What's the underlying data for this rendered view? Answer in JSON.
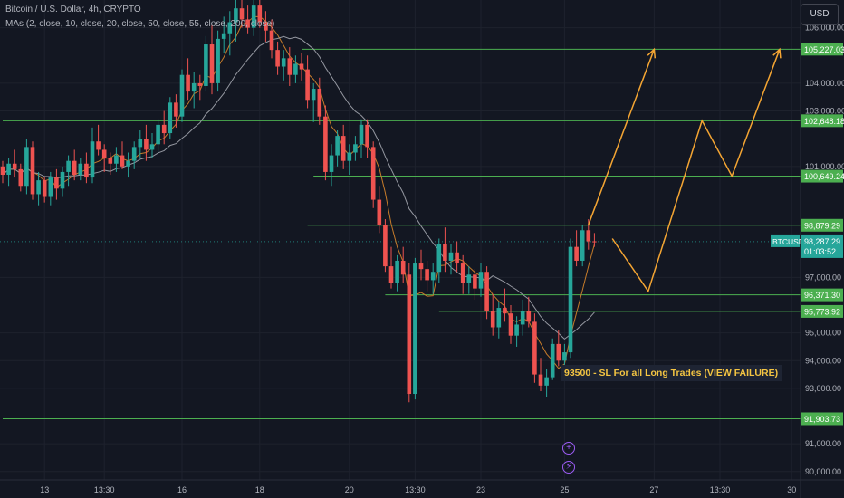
{
  "header": {
    "symbol_title": "Bitcoin / U.S. Dollar, 4h, CRYPTO",
    "indicator_label": "MAs (2, close, 10, close, 20, close, 50, close, 55, close, 200, close)",
    "currency_button": "USD"
  },
  "annotation": {
    "text": "93500 - SL For all Long Trades (VIEW FAILURE)"
  },
  "ticker": {
    "symbol": "BTCUSD",
    "price": "98,287.29",
    "countdown": "01:03:52"
  },
  "events": [
    {
      "icon": "plus-icon",
      "glyph": "+"
    },
    {
      "icon": "lightning-icon",
      "glyph": "⚡"
    }
  ],
  "colors": {
    "background": "#131722",
    "bull": "#26a69a",
    "bear": "#ef5350",
    "level_line": "#4caf50",
    "projection": "#f4a533",
    "ma_fast": "#c57b2a",
    "ma_slow": "#9598a1",
    "annotation_text": "#f4c542"
  },
  "chart_data": {
    "type": "candlestick",
    "symbol": "BTCUSD",
    "interval": "4h",
    "y_axis": {
      "ylim": [
        89700,
        107000
      ],
      "ticks": [
        90000,
        91000,
        93000,
        94000,
        95000,
        97000,
        101000,
        103000,
        104000,
        106000
      ],
      "tick_labels": [
        "90,000.00",
        "91,000.00",
        "93,000.00",
        "94,000.00",
        "95,000.00",
        "97,000.00",
        "101,000.00",
        "103,000.00",
        "104,000.00",
        "106,000.00"
      ]
    },
    "x_axis": {
      "tick_labels": [
        "13",
        "13:30",
        "16",
        "18",
        "20",
        "13:30",
        "23",
        "25",
        "27",
        "13:30",
        "30"
      ],
      "tick_candle_index": [
        7,
        17,
        30,
        43,
        58,
        69,
        80,
        94,
        109,
        120,
        132
      ]
    },
    "levels": [
      {
        "price": 105227.03,
        "label": "105,227.03",
        "start": 50
      },
      {
        "price": 102648.18,
        "label": 102648.18,
        "start": 0
      },
      {
        "price": 100649.24,
        "label": "100,649.24",
        "start": 52
      },
      {
        "price": 98879.29,
        "label": "98,879.29",
        "start": 51
      },
      {
        "price": 96371.3,
        "label": "96,371.30",
        "start": 64
      },
      {
        "price": 95773.92,
        "label": "95,773.92",
        "start": 73
      },
      {
        "price": 91903.73,
        "label": "91,903.73",
        "start": 0
      }
    ],
    "projections": [
      {
        "points": [
          [
            98,
            98900
          ],
          [
            109,
            105227
          ]
        ]
      },
      {
        "points": [
          [
            102,
            98400
          ],
          [
            108,
            96500
          ],
          [
            117,
            102650
          ],
          [
            122,
            100650
          ],
          [
            130,
            105227
          ]
        ]
      }
    ],
    "last_price": 98287.29,
    "candles": [
      [
        101000,
        101200,
        100400,
        100700
      ],
      [
        100700,
        101300,
        100300,
        101100
      ],
      [
        101100,
        101600,
        100600,
        100900
      ],
      [
        100900,
        101100,
        100100,
        100300
      ],
      [
        100300,
        102000,
        100000,
        101700
      ],
      [
        101700,
        101900,
        99800,
        100000
      ],
      [
        100000,
        100800,
        99600,
        100500
      ],
      [
        100500,
        100600,
        99700,
        99900
      ],
      [
        99900,
        100800,
        99600,
        100600
      ],
      [
        100600,
        100900,
        99800,
        100200
      ],
      [
        100200,
        101000,
        99900,
        100800
      ],
      [
        100800,
        101400,
        100300,
        101200
      ],
      [
        101200,
        101600,
        100500,
        100700
      ],
      [
        100700,
        101300,
        100500,
        101100
      ],
      [
        101100,
        101500,
        100400,
        100600
      ],
      [
        100600,
        102400,
        100400,
        101900
      ],
      [
        101900,
        102500,
        101400,
        101600
      ],
      [
        101600,
        101800,
        100800,
        101300
      ],
      [
        101300,
        101500,
        100700,
        101100
      ],
      [
        101100,
        101700,
        100800,
        101400
      ],
      [
        101400,
        101900,
        100900,
        101000
      ],
      [
        101000,
        101500,
        100600,
        101200
      ],
      [
        101200,
        101900,
        100900,
        101700
      ],
      [
        101700,
        102300,
        101300,
        102000
      ],
      [
        102000,
        102500,
        101200,
        101600
      ],
      [
        101600,
        102200,
        101300,
        101800
      ],
      [
        101800,
        102700,
        101500,
        102500
      ],
      [
        102500,
        103000,
        101800,
        102200
      ],
      [
        102200,
        103500,
        102000,
        103300
      ],
      [
        103300,
        103600,
        102400,
        102800
      ],
      [
        102800,
        104500,
        102600,
        104300
      ],
      [
        104300,
        104900,
        103400,
        103700
      ],
      [
        103700,
        104400,
        103100,
        104000
      ],
      [
        104000,
        104300,
        103400,
        103900
      ],
      [
        103900,
        105700,
        103700,
        105400
      ],
      [
        105400,
        106100,
        103600,
        104000
      ],
      [
        104000,
        105900,
        103700,
        105600
      ],
      [
        105600,
        106400,
        105100,
        105800
      ],
      [
        105800,
        106600,
        105000,
        106200
      ],
      [
        106200,
        107000,
        105500,
        106700
      ],
      [
        106700,
        107200,
        106000,
        106300
      ],
      [
        106300,
        106800,
        105800,
        106000
      ],
      [
        106000,
        107100,
        105700,
        106800
      ],
      [
        106800,
        107300,
        106000,
        106200
      ],
      [
        106200,
        106600,
        105500,
        105900
      ],
      [
        105900,
        106300,
        104900,
        105200
      ],
      [
        105200,
        105500,
        104300,
        104600
      ],
      [
        104600,
        105200,
        104100,
        104900
      ],
      [
        104900,
        105300,
        103900,
        104300
      ],
      [
        104300,
        105000,
        104000,
        104700
      ],
      [
        104700,
        105100,
        104100,
        104500
      ],
      [
        104500,
        105000,
        103100,
        103400
      ],
      [
        103400,
        104000,
        102600,
        103800
      ],
      [
        103800,
        104200,
        102500,
        102800
      ],
      [
        102800,
        103200,
        100500,
        100800
      ],
      [
        100800,
        101800,
        100300,
        101400
      ],
      [
        101400,
        102300,
        101000,
        102100
      ],
      [
        102100,
        102500,
        100900,
        101200
      ],
      [
        101200,
        101800,
        100700,
        101500
      ],
      [
        101500,
        102100,
        101200,
        101800
      ],
      [
        101800,
        102700,
        101300,
        102500
      ],
      [
        102500,
        102700,
        101300,
        101700
      ],
      [
        101700,
        101900,
        99500,
        99800
      ],
      [
        99800,
        100300,
        98600,
        98900
      ],
      [
        98900,
        99100,
        97200,
        97400
      ],
      [
        97400,
        98100,
        96600,
        96800
      ],
      [
        96800,
        97800,
        96500,
        97600
      ],
      [
        97600,
        98100,
        96800,
        97100
      ],
      [
        97100,
        97500,
        92500,
        92800
      ],
      [
        92800,
        97700,
        92600,
        97500
      ],
      [
        97500,
        98000,
        96900,
        97300
      ],
      [
        97300,
        97600,
        96500,
        96900
      ],
      [
        96900,
        97500,
        96400,
        97200
      ],
      [
        97200,
        98400,
        96800,
        98200
      ],
      [
        98200,
        98800,
        97200,
        97600
      ],
      [
        97600,
        98200,
        97100,
        97900
      ],
      [
        97900,
        98300,
        97200,
        97500
      ],
      [
        97500,
        97800,
        96400,
        96800
      ],
      [
        96800,
        97400,
        96400,
        97100
      ],
      [
        97100,
        97300,
        96200,
        96600
      ],
      [
        96600,
        97500,
        96300,
        97200
      ],
      [
        97200,
        97400,
        95500,
        95800
      ],
      [
        95800,
        96400,
        94900,
        95200
      ],
      [
        95200,
        96100,
        94800,
        95900
      ],
      [
        95900,
        96600,
        95400,
        95700
      ],
      [
        95700,
        96000,
        94600,
        94900
      ],
      [
        94900,
        95600,
        94500,
        95300
      ],
      [
        95300,
        96200,
        94900,
        95800
      ],
      [
        95800,
        96300,
        95200,
        95400
      ],
      [
        95400,
        95700,
        93200,
        93500
      ],
      [
        93500,
        94100,
        92900,
        93100
      ],
      [
        93100,
        93700,
        92700,
        93400
      ],
      [
        93400,
        94800,
        93300,
        94600
      ],
      [
        94600,
        95100,
        93800,
        94000
      ],
      [
        94000,
        94600,
        93700,
        94300
      ],
      [
        94300,
        98400,
        94100,
        98100
      ],
      [
        98100,
        98700,
        97400,
        97600
      ],
      [
        97600,
        98900,
        97400,
        98700
      ],
      [
        98700,
        99100,
        98000,
        98300
      ],
      [
        98300,
        98600,
        98100,
        98287.29
      ]
    ]
  }
}
